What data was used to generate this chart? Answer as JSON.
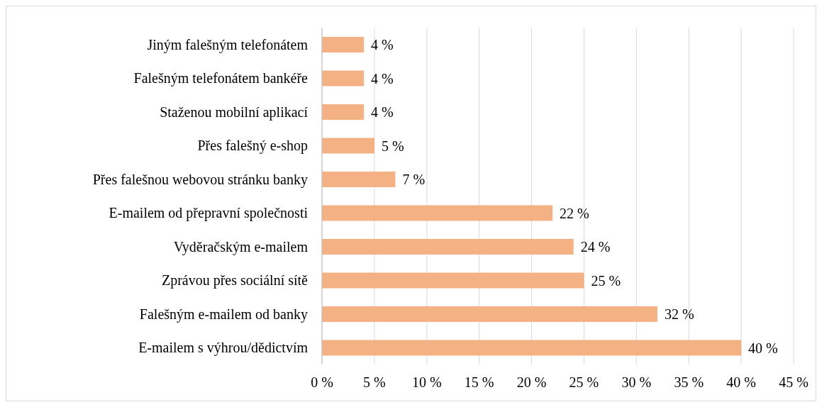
{
  "chart_data": {
    "type": "bar",
    "orientation": "horizontal",
    "categories": [
      "Jiným falešným telefonátem",
      "Falešným telefonátem bankéře",
      "Staženou mobilní aplikací",
      "Přes falešný e-shop",
      "Přes falešnou webovou stránku banky",
      "E-mailem od přepravní společnosti",
      "Vyděračským e-mailem",
      "Zprávou přes sociální sítě",
      "Falešným e-mailem od banky",
      "E-mailem s výhrou/dědictvím"
    ],
    "values": [
      4,
      4,
      4,
      5,
      7,
      22,
      24,
      25,
      32,
      40
    ],
    "value_labels": [
      "4 %",
      "4 %",
      "4 %",
      "5 %",
      "7 %",
      "22 %",
      "24 %",
      "25 %",
      "32 %",
      "40 %"
    ],
    "color": "#f4b183",
    "xlim": [
      0,
      45
    ],
    "xticks": [
      {
        "value": 0,
        "label": "0 %"
      },
      {
        "value": 5,
        "label": "5 %"
      },
      {
        "value": 10,
        "label": "10 %"
      },
      {
        "value": 15,
        "label": "15 %"
      },
      {
        "value": 20,
        "label": "20 %"
      },
      {
        "value": 25,
        "label": "25 %"
      },
      {
        "value": 30,
        "label": "30 %"
      },
      {
        "value": 35,
        "label": "35 %"
      },
      {
        "value": 40,
        "label": "40 %"
      },
      {
        "value": 45,
        "label": "45 %"
      }
    ],
    "grid": "x"
  }
}
